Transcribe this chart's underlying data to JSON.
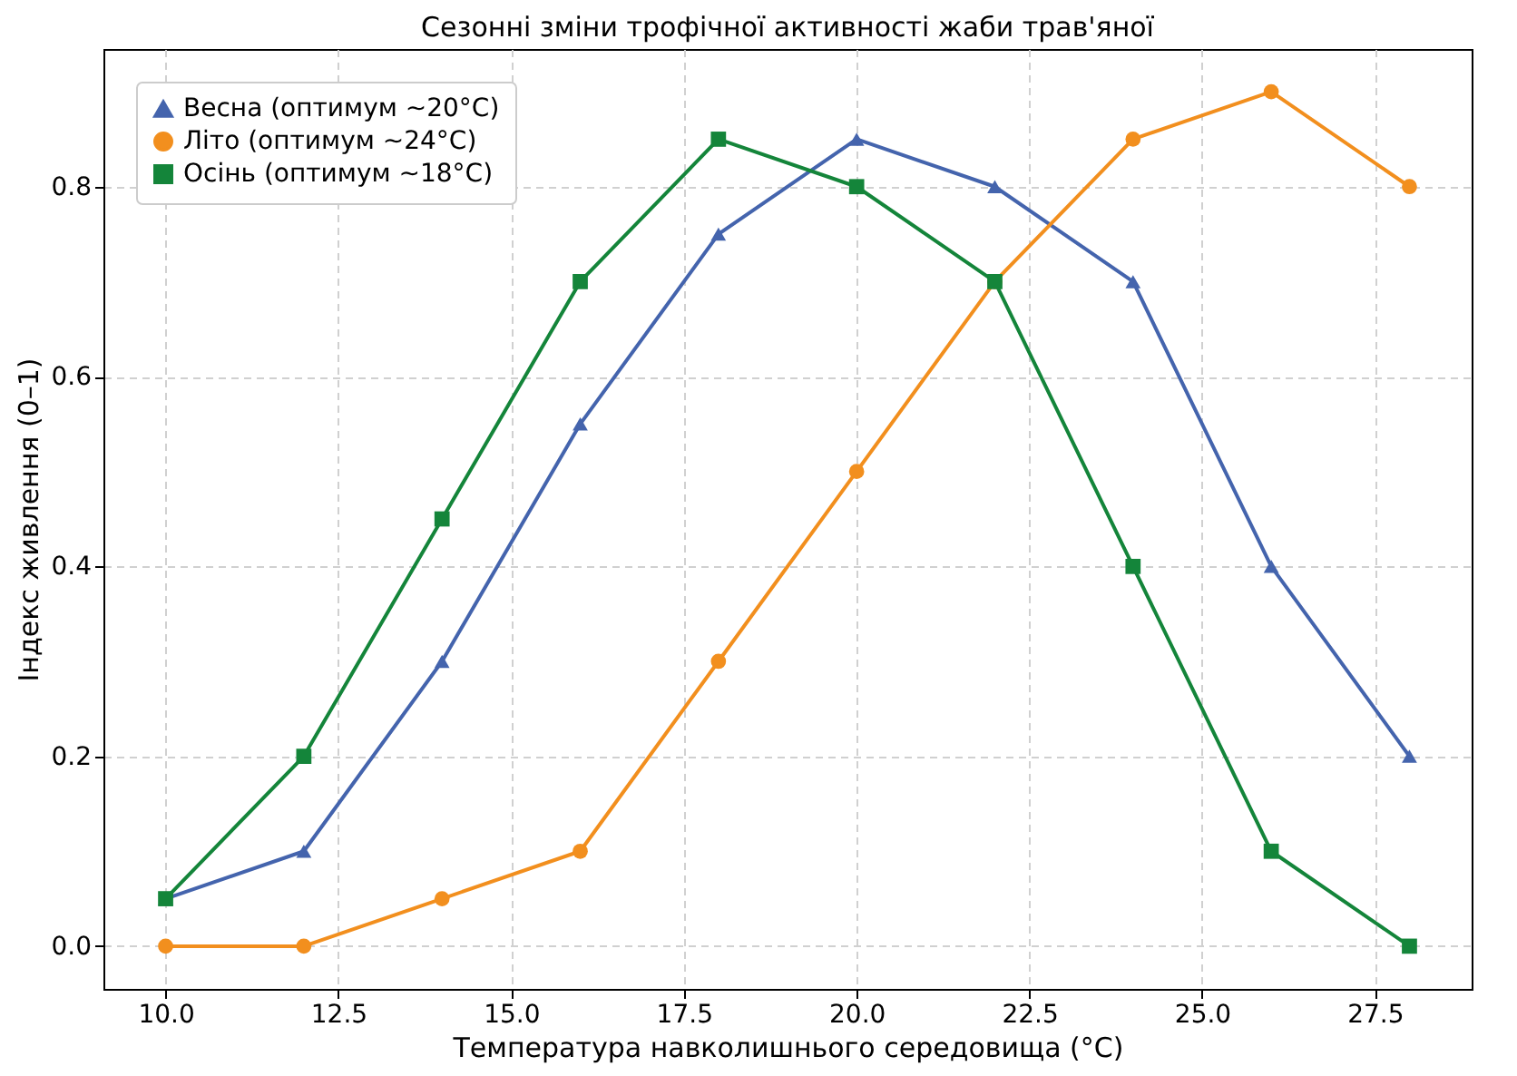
{
  "chart_data": {
    "type": "line",
    "title": "Сезонні зміни трофічної активності жаби трав'яної",
    "xlabel": "Температура навколишнього середовища (°C)",
    "ylabel": "Індекс живлення (0–1)",
    "x": [
      10,
      12,
      14,
      16,
      18,
      20,
      22,
      24,
      26,
      28
    ],
    "series": [
      {
        "name": "Весна (оптимум ~20°C)",
        "color": "#4464ad",
        "marker": "triangle",
        "values": [
          0.05,
          0.1,
          0.3,
          0.55,
          0.75,
          0.85,
          0.8,
          0.7,
          0.4,
          0.2
        ]
      },
      {
        "name": "Літо (оптимум ~24°C)",
        "color": "#f28f1e",
        "marker": "circle",
        "values": [
          0,
          0,
          0.05,
          0.1,
          0.3,
          0.5,
          0.7,
          0.85,
          0.9,
          0.8
        ]
      },
      {
        "name": "Осінь (оптимум ~18°C)",
        "color": "#14853a",
        "marker": "square",
        "values": [
          0.05,
          0.2,
          0.45,
          0.7,
          0.85,
          0.8,
          0.7,
          0.4,
          0.1,
          0.0
        ]
      }
    ],
    "xlim": [
      9.1,
      28.9
    ],
    "xticks": [
      {
        "value": 10,
        "label": "10.0"
      },
      {
        "value": 12.5,
        "label": "12.5"
      },
      {
        "value": 15,
        "label": "15.0"
      },
      {
        "value": 17.5,
        "label": "17.5"
      },
      {
        "value": 20,
        "label": "20.0"
      },
      {
        "value": 22.5,
        "label": "22.5"
      },
      {
        "value": 25,
        "label": "25.0"
      },
      {
        "value": 27.5,
        "label": "27.5"
      }
    ],
    "ylim": [
      -0.045,
      0.945
    ],
    "yticks": [
      {
        "value": 0,
        "label": "0.0"
      },
      {
        "value": 0.2,
        "label": "0.2"
      },
      {
        "value": 0.4,
        "label": "0.4"
      },
      {
        "value": 0.6,
        "label": "0.6"
      },
      {
        "value": 0.8,
        "label": "0.8"
      }
    ],
    "grid": true,
    "line_style": "solid",
    "legend": "top left"
  }
}
